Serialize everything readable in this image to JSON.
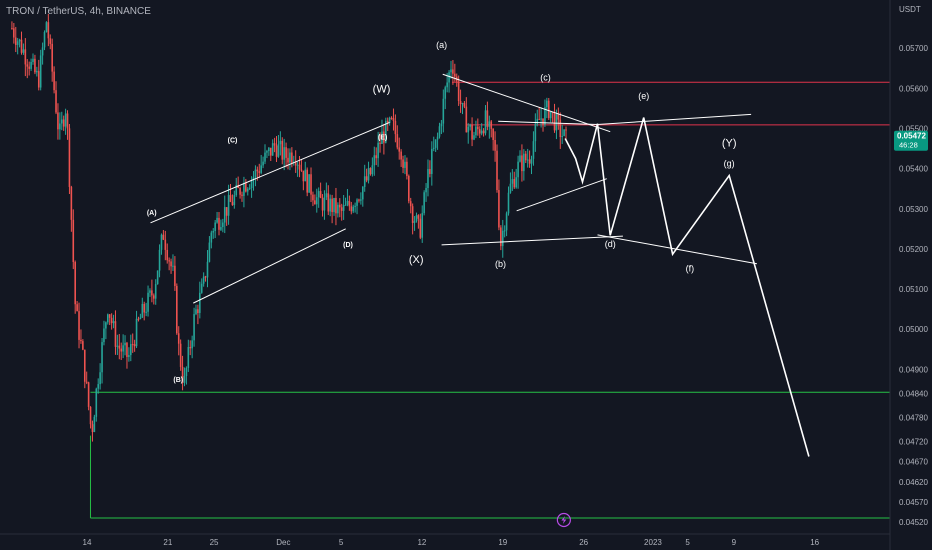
{
  "header": {
    "title": "TRON / TetherUS, 4h, BINANCE",
    "currency": "USDT"
  },
  "price_axis": {
    "last_price": "0.05472",
    "countdown": "46:28"
  },
  "colors": {
    "background": "#131722",
    "up": "#26a69a",
    "down": "#ef5350",
    "projection": "#ffffff",
    "resistance": "#e0334b",
    "support": "#26c046",
    "price_tag": "#089981",
    "flash_icon": "#b84ce8"
  },
  "chart_data": {
    "type": "candlestick",
    "title": "TRON / TetherUS, 4h, BINANCE",
    "ylabel": "USDT",
    "ylim": [
      0.0449,
      0.0582
    ],
    "y_ticks": [
      "0.05700",
      "0.05600",
      "0.05500",
      "0.05400",
      "0.05300",
      "0.05200",
      "0.05100",
      "0.05000",
      "0.04900",
      "0.04840",
      "0.04780",
      "0.04720",
      "0.04670",
      "0.04620",
      "0.04570",
      "0.04520"
    ],
    "x_ticks": [
      {
        "label": "14",
        "x": 0
      },
      {
        "label": "21",
        "x": 7
      },
      {
        "label": "25",
        "x": 11
      },
      {
        "label": "Dec",
        "x": 17
      },
      {
        "label": "5",
        "x": 22
      },
      {
        "label": "12",
        "x": 29
      },
      {
        "label": "19",
        "x": 36
      },
      {
        "label": "26",
        "x": 43
      },
      {
        "label": "2023",
        "x": 49
      },
      {
        "label": "5",
        "x": 52
      },
      {
        "label": "9",
        "x": 56
      },
      {
        "label": "16",
        "x": 63
      }
    ],
    "last_bar_x": 41.5,
    "price_path": [
      [
        -6.5,
        0.0575
      ],
      [
        -4.2,
        0.0562
      ],
      [
        -3.5,
        0.0577
      ],
      [
        -2.4,
        0.0548
      ],
      [
        -1.8,
        0.0556
      ],
      [
        -1.0,
        0.0505
      ],
      [
        -0.3,
        0.0492
      ],
      [
        0.4,
        0.0474
      ],
      [
        0.9,
        0.0487
      ],
      [
        1.8,
        0.0506
      ],
      [
        2.6,
        0.0496
      ],
      [
        3.6,
        0.0493
      ],
      [
        4.5,
        0.0502
      ],
      [
        5.8,
        0.051
      ],
      [
        6.6,
        0.0524
      ],
      [
        7.5,
        0.0513
      ],
      [
        7.9,
        0.0496
      ],
      [
        8.4,
        0.0486
      ],
      [
        9.3,
        0.0503
      ],
      [
        10.1,
        0.0511
      ],
      [
        10.8,
        0.0525
      ],
      [
        11.8,
        0.0529
      ],
      [
        12.6,
        0.0532
      ],
      [
        13.5,
        0.0536
      ],
      [
        14.4,
        0.0538
      ],
      [
        15.3,
        0.0542
      ],
      [
        16.3,
        0.0546
      ],
      [
        17.1,
        0.0543
      ],
      [
        18.0,
        0.0544
      ],
      [
        19.0,
        0.0537
      ],
      [
        20.0,
        0.0532
      ],
      [
        21.0,
        0.0531
      ],
      [
        22.0,
        0.0529
      ],
      [
        22.8,
        0.0531
      ],
      [
        23.6,
        0.0534
      ],
      [
        24.6,
        0.0539
      ],
      [
        25.5,
        0.0548
      ],
      [
        26.4,
        0.0551
      ],
      [
        27.2,
        0.0545
      ],
      [
        28.1,
        0.053
      ],
      [
        28.8,
        0.0524
      ],
      [
        29.6,
        0.054
      ],
      [
        30.4,
        0.0548
      ],
      [
        31.0,
        0.0559
      ],
      [
        31.6,
        0.0567
      ],
      [
        32.5,
        0.0554
      ],
      [
        33.4,
        0.0548
      ],
      [
        34.5,
        0.0552
      ],
      [
        35.3,
        0.0545
      ],
      [
        35.8,
        0.0521
      ],
      [
        36.6,
        0.0535
      ],
      [
        37.4,
        0.0541
      ],
      [
        38.3,
        0.0543
      ],
      [
        39.1,
        0.0552
      ],
      [
        40.0,
        0.0555
      ],
      [
        40.8,
        0.055
      ],
      [
        41.5,
        0.0547
      ]
    ],
    "wave_labels": [
      {
        "text": "(A)",
        "x": 5.6,
        "y": 0.05285,
        "size": "small"
      },
      {
        "text": "(B)",
        "x": 7.9,
        "y": 0.04868,
        "size": "small"
      },
      {
        "text": "(C)",
        "x": 12.6,
        "y": 0.05465,
        "size": "small"
      },
      {
        "text": "(D)",
        "x": 22.6,
        "y": 0.05205,
        "size": "small"
      },
      {
        "text": "(E)",
        "x": 25.6,
        "y": 0.05473,
        "size": "small"
      },
      {
        "text": "(W)",
        "x": 25.5,
        "y": 0.0559,
        "size": "large"
      },
      {
        "text": "(X)",
        "x": 28.5,
        "y": 0.05165,
        "size": "large"
      },
      {
        "text": "(a)",
        "x": 30.7,
        "y": 0.057,
        "size": "medium"
      },
      {
        "text": "(b)",
        "x": 35.8,
        "y": 0.05155,
        "size": "medium"
      },
      {
        "text": "(c)",
        "x": 39.7,
        "y": 0.0562,
        "size": "medium"
      },
      {
        "text": "(d)",
        "x": 45.3,
        "y": 0.05205,
        "size": "medium"
      },
      {
        "text": "(e)",
        "x": 48.2,
        "y": 0.05573,
        "size": "medium"
      },
      {
        "text": "(f)",
        "x": 52.2,
        "y": 0.05144,
        "size": "medium"
      },
      {
        "text": "(Y)",
        "x": 55.6,
        "y": 0.05455,
        "size": "large"
      },
      {
        "text": "(g)",
        "x": 55.6,
        "y": 0.05405,
        "size": "medium"
      }
    ],
    "trendlines": [
      {
        "x1": 5.5,
        "y1": 0.05265,
        "x2": 26.2,
        "y2": 0.05515
      },
      {
        "x1": 9.2,
        "y1": 0.05065,
        "x2": 22.4,
        "y2": 0.0525
      },
      {
        "x1": 30.8,
        "y1": 0.05635,
        "x2": 45.3,
        "y2": 0.05492
      },
      {
        "x1": 30.7,
        "y1": 0.0521,
        "x2": 46.4,
        "y2": 0.05232
      },
      {
        "x1": 35.6,
        "y1": 0.05518,
        "x2": 44.2,
        "y2": 0.0551
      },
      {
        "x1": 44.2,
        "y1": 0.0551,
        "x2": 57.5,
        "y2": 0.05535
      },
      {
        "x1": 37.2,
        "y1": 0.05295,
        "x2": 45.0,
        "y2": 0.05375
      },
      {
        "x1": 44.2,
        "y1": 0.05235,
        "x2": 58.0,
        "y2": 0.05163
      }
    ],
    "projection_path": [
      [
        41.4,
        0.05475
      ],
      [
        42.3,
        0.05425
      ],
      [
        42.9,
        0.05367
      ],
      [
        44.2,
        0.05512
      ],
      [
        45.3,
        0.05234
      ],
      [
        48.2,
        0.05527
      ],
      [
        50.7,
        0.05187
      ],
      [
        55.6,
        0.05383
      ],
      [
        62.5,
        0.04683
      ]
    ],
    "horizontal_levels": [
      {
        "value": 0.05615,
        "color": "resistance",
        "x_start": 31.6
      },
      {
        "value": 0.05509,
        "color": "resistance",
        "x_start": 32.8
      },
      {
        "value": 0.04843,
        "color": "support",
        "x_start": 0.3
      },
      {
        "value": 0.0453,
        "color": "support",
        "x_start": 0.3
      }
    ]
  }
}
